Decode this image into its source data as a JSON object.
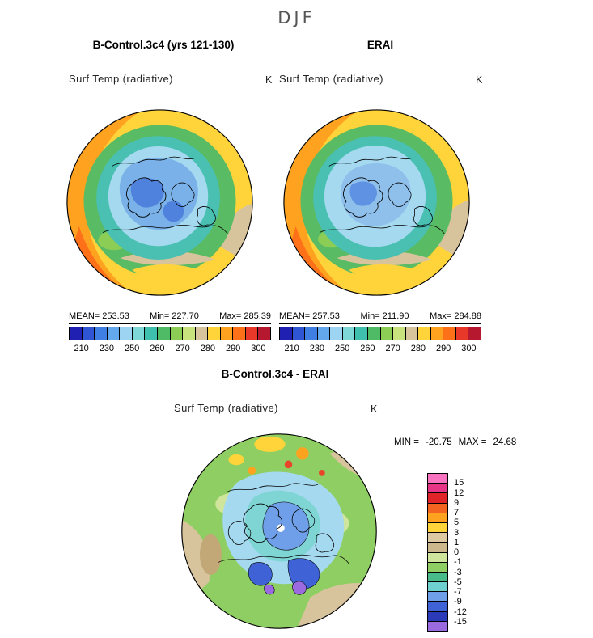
{
  "page": {
    "season_title": "DJF"
  },
  "top_panels": [
    {
      "title": "B-Control.3c4 (yrs 121-130)",
      "subtitle": "Surf Temp (radiative)",
      "units": "K",
      "stats": {
        "mean_label": "MEAN=",
        "mean": "253.53",
        "min_label": "Min=",
        "min": "227.70",
        "max_label": "Max=",
        "max": "285.39"
      }
    },
    {
      "title": "ERAI",
      "subtitle": "Surf Temp (radiative)",
      "units": "K",
      "stats": {
        "mean_label": "MEAN=",
        "mean": "257.53",
        "min_label": "Min=",
        "min": "211.90",
        "max_label": "Max=",
        "max": "284.88"
      }
    }
  ],
  "temp_colorbar": {
    "labels": [
      "210",
      "230",
      "250",
      "260",
      "270",
      "280",
      "290",
      "300"
    ],
    "colors": [
      "#2020b2",
      "#2f55d4",
      "#3f7fe4",
      "#63a8ec",
      "#9cd4f2",
      "#7fd8d8",
      "#3fbfae",
      "#4fbb66",
      "#8ccd55",
      "#c8e27e",
      "#d8c49c",
      "#ffd43a",
      "#ffa21f",
      "#ff7119",
      "#e8382a",
      "#b5182f"
    ]
  },
  "diff_panel": {
    "title": "B-Control.3c4 - ERAI",
    "subtitle": "Surf Temp (radiative)",
    "units": "K",
    "stats": {
      "min_label": "MIN =",
      "min": "-20.75",
      "max_label": "MAX =",
      "max": "24.68"
    }
  },
  "diff_colorbar": {
    "labels": [
      "15",
      "12",
      "9",
      "7",
      "5",
      "3",
      "1",
      "0",
      "-1",
      "-3",
      "-5",
      "-7",
      "-9",
      "-12",
      "-15"
    ],
    "colors": [
      "#f973c0",
      "#e63486",
      "#e0242a",
      "#f2641f",
      "#ffa21f",
      "#ffd43a",
      "#ddc9a2",
      "#cdb88e",
      "#cfe59b",
      "#8fce62",
      "#49bb8a",
      "#6fd0d0",
      "#6f9fe8",
      "#3f63d6",
      "#2a3ab8",
      "#9b6ae0"
    ]
  },
  "chart_data": [
    {
      "type": "heatmap",
      "title": "B-Control.3c4 (yrs 121-130)",
      "variable": "Surf Temp (radiative)",
      "season": "DJF",
      "units": "K",
      "projection": "north-polar-stereographic",
      "stats": {
        "mean": 253.53,
        "min": 227.7,
        "max": 285.39
      },
      "contour_levels": [
        210,
        220,
        230,
        240,
        250,
        255,
        260,
        265,
        270,
        275,
        280,
        285,
        290,
        295,
        300
      ],
      "labeled_levels": [
        210,
        230,
        250,
        260,
        270,
        280,
        290,
        300
      ],
      "palette": [
        "#2020b2",
        "#2f55d4",
        "#3f7fe4",
        "#63a8ec",
        "#9cd4f2",
        "#7fd8d8",
        "#3fbfae",
        "#4fbb66",
        "#8ccd55",
        "#c8e27e",
        "#d8c49c",
        "#ffd43a",
        "#ffa21f",
        "#ff7119",
        "#e8382a",
        "#b5182f"
      ],
      "legend_position": "bottom"
    },
    {
      "type": "heatmap",
      "title": "ERAI",
      "variable": "Surf Temp (radiative)",
      "season": "DJF",
      "units": "K",
      "projection": "north-polar-stereographic",
      "stats": {
        "mean": 257.53,
        "min": 211.9,
        "max": 284.88
      },
      "contour_levels": [
        210,
        220,
        230,
        240,
        250,
        255,
        260,
        265,
        270,
        275,
        280,
        285,
        290,
        295,
        300
      ],
      "labeled_levels": [
        210,
        230,
        250,
        260,
        270,
        280,
        290,
        300
      ],
      "palette": [
        "#2020b2",
        "#2f55d4",
        "#3f7fe4",
        "#63a8ec",
        "#9cd4f2",
        "#7fd8d8",
        "#3fbfae",
        "#4fbb66",
        "#8ccd55",
        "#c8e27e",
        "#d8c49c",
        "#ffd43a",
        "#ffa21f",
        "#ff7119",
        "#e8382a",
        "#b5182f"
      ],
      "legend_position": "bottom"
    },
    {
      "type": "heatmap",
      "title": "B-Control.3c4 - ERAI",
      "variable": "Surf Temp (radiative)",
      "season": "DJF",
      "units": "K",
      "projection": "north-polar-stereographic",
      "stats": {
        "min": -20.75,
        "max": 24.68
      },
      "contour_levels": [
        -15,
        -12,
        -9,
        -7,
        -5,
        -3,
        -1,
        0,
        1,
        3,
        5,
        7,
        9,
        12,
        15
      ],
      "palette_top_to_bottom": [
        "#f973c0",
        "#e63486",
        "#e0242a",
        "#f2641f",
        "#ffa21f",
        "#ffd43a",
        "#ddc9a2",
        "#cdb88e",
        "#cfe59b",
        "#8fce62",
        "#49bb8a",
        "#6fd0d0",
        "#6f9fe8",
        "#3f63d6",
        "#2a3ab8",
        "#9b6ae0"
      ],
      "legend_position": "right"
    }
  ]
}
